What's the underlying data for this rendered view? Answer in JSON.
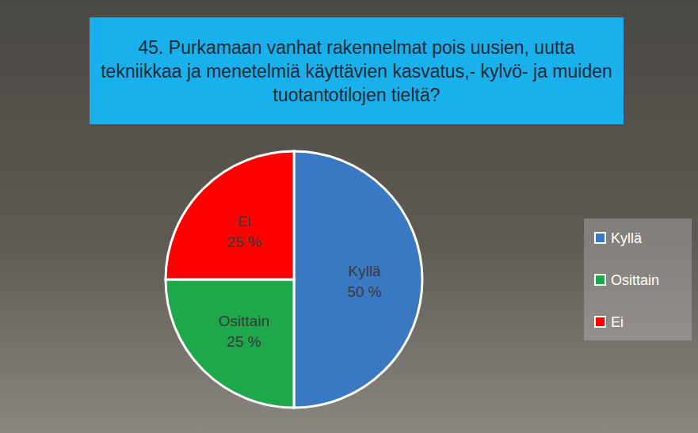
{
  "chart_data": {
    "type": "pie",
    "title": "45. Purkamaan vanhat rakennelmat pois uusien, uutta tekniikkaa ja menetelmiä käyttävien kasvatus,- kylvö- ja muiden tuotantotilojen tieltä?",
    "categories": [
      "Kyllä",
      "Osittain",
      "Ei"
    ],
    "values": [
      50,
      25,
      25
    ],
    "value_labels": [
      "50 %",
      "25 %",
      "25 %"
    ],
    "colors": [
      "#3a78c2",
      "#1ea84b",
      "#fe0000"
    ],
    "data_labels": true,
    "legend": "right"
  }
}
